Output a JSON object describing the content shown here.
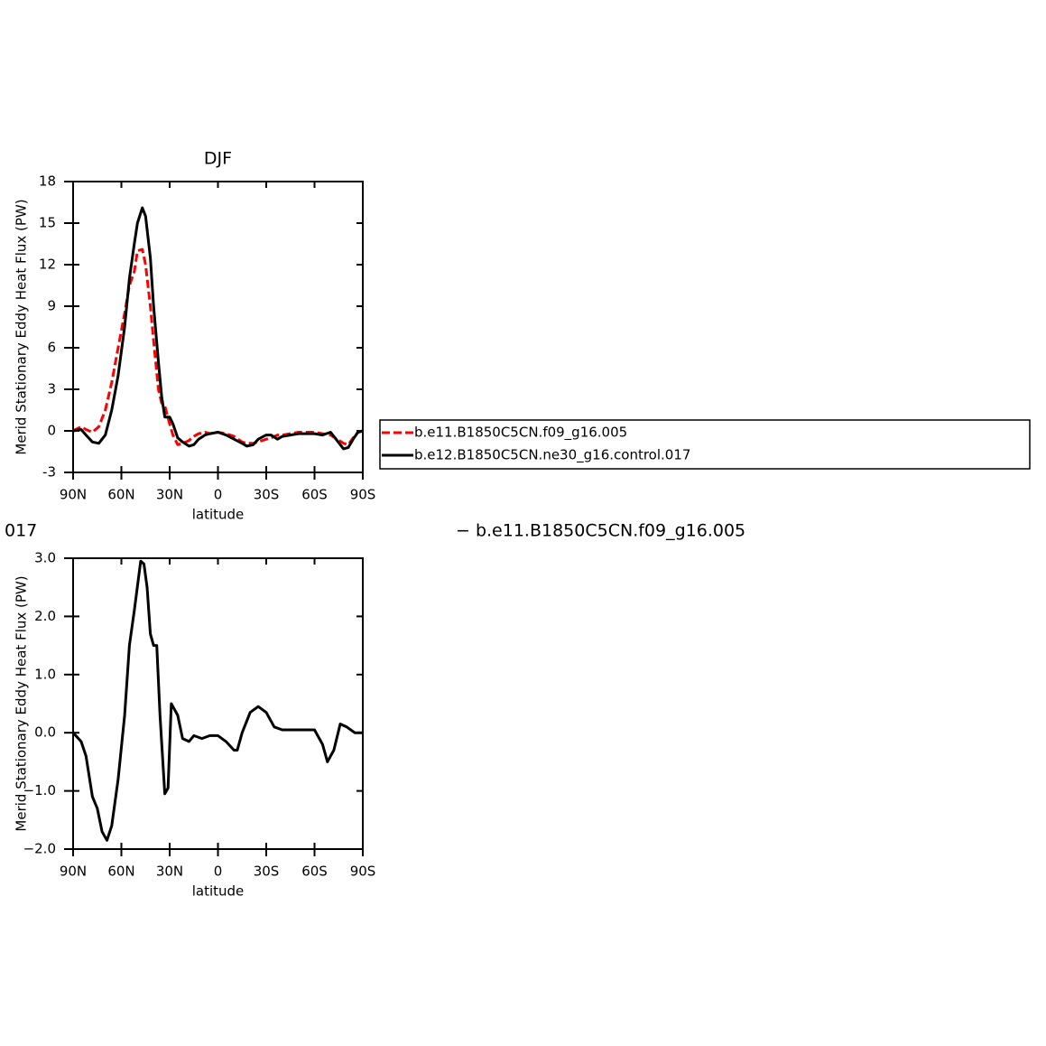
{
  "chart_data": [
    {
      "type": "line",
      "title": "DJF",
      "ylabel": "Merid Stationary Eddy Heat Flux (PW)",
      "xlabel": "latitude",
      "x": [
        90,
        85,
        82,
        78,
        74,
        70,
        66,
        62,
        58,
        55,
        52,
        50,
        47,
        45,
        42,
        40,
        37,
        35,
        33,
        30,
        28,
        25,
        22,
        18,
        15,
        12,
        8,
        5,
        0,
        -5,
        -10,
        -15,
        -18,
        -22,
        -25,
        -30,
        -33,
        -37,
        -40,
        -45,
        -50,
        -55,
        -60,
        -65,
        -70,
        -74,
        -78,
        -81,
        -84,
        -87,
        -90
      ],
      "xlim": [
        90,
        -90
      ],
      "xticks": [
        {
          "value": 90,
          "label": "90N"
        },
        {
          "value": 60,
          "label": "60N"
        },
        {
          "value": 30,
          "label": "30N"
        },
        0,
        {
          "value": -30,
          "label": "30S"
        },
        {
          "value": -60,
          "label": "60S"
        },
        {
          "value": -90,
          "label": "90S"
        }
      ],
      "ylim": [
        -3,
        18
      ],
      "yticks": [
        -3,
        0,
        3,
        6,
        9,
        12,
        15,
        18
      ],
      "series": [
        {
          "name": "b.e11.B1850C5CN.f09_g16.005",
          "color": "#ff0000",
          "linestyle": "dashed",
          "values": [
            0,
            0.3,
            0.1,
            -0.1,
            0.3,
            1.5,
            3.5,
            6,
            8.5,
            10.5,
            11.5,
            13,
            13.1,
            12,
            9,
            6.5,
            3,
            2,
            1.8,
            0.5,
            -0.3,
            -1,
            -0.9,
            -0.7,
            -0.4,
            -0.2,
            -0.1,
            -0.2,
            -0.1,
            -0.2,
            -0.4,
            -0.8,
            -0.9,
            -0.9,
            -0.8,
            -0.6,
            -0.5,
            -0.3,
            -0.3,
            -0.2,
            -0.1,
            -0.1,
            -0.1,
            -0.2,
            -0.3,
            -0.6,
            -0.9,
            -1,
            -0.5,
            -0.1,
            0
          ]
        },
        {
          "name": "b.e12.B1850C5CN.ne30_g16.control.017",
          "color": "#000000",
          "linestyle": "solid",
          "values": [
            0,
            0.1,
            -0.3,
            -0.8,
            -0.9,
            -0.3,
            1.5,
            4,
            7.5,
            11,
            13.5,
            15,
            16.1,
            15.5,
            12.5,
            9,
            5,
            2.5,
            1,
            1,
            0.5,
            -0.5,
            -0.8,
            -1.1,
            -1,
            -0.6,
            -0.3,
            -0.2,
            -0.1,
            -0.3,
            -0.6,
            -0.9,
            -1.1,
            -1,
            -0.6,
            -0.3,
            -0.3,
            -0.6,
            -0.4,
            -0.3,
            -0.2,
            -0.2,
            -0.2,
            -0.3,
            -0.1,
            -0.7,
            -1.3,
            -1.2,
            -0.6,
            -0.1,
            0
          ]
        }
      ]
    },
    {
      "type": "line",
      "title": [
        "017",
        "− b.e11.B1850C5CN.f09_g16.005"
      ],
      "ylabel": "Merid Stationary Eddy Heat Flux (PW)",
      "xlabel": "latitude",
      "x": [
        90,
        85,
        82,
        78,
        75,
        72,
        69,
        66,
        62,
        58,
        55,
        52,
        48,
        46,
        44,
        42,
        40,
        38,
        36,
        33,
        31,
        29,
        27,
        25,
        22,
        18,
        15,
        10,
        5,
        0,
        -5,
        -10,
        -12,
        -15,
        -20,
        -25,
        -30,
        -35,
        -40,
        -45,
        -50,
        -55,
        -60,
        -65,
        -68,
        -72,
        -76,
        -80,
        -85,
        -90
      ],
      "xlim": [
        90,
        -90
      ],
      "xticks": [
        {
          "value": 90,
          "label": "90N"
        },
        {
          "value": 60,
          "label": "60N"
        },
        {
          "value": 30,
          "label": "30N"
        },
        0,
        {
          "value": -30,
          "label": "30S"
        },
        {
          "value": -60,
          "label": "60S"
        },
        {
          "value": -90,
          "label": "90S"
        }
      ],
      "ylim": [
        -2,
        3
      ],
      "yticks": [
        {
          "value": -2,
          "label": "−2.0"
        },
        {
          "value": -1,
          "label": "−1.0"
        },
        {
          "value": 0,
          "label": "0.0"
        },
        {
          "value": 1,
          "label": "1.0"
        },
        {
          "value": 2,
          "label": "2.0"
        },
        {
          "value": 3,
          "label": "3.0"
        }
      ],
      "series": [
        {
          "color": "#000000",
          "linestyle": "solid",
          "values": [
            0,
            -0.15,
            -0.4,
            -1.1,
            -1.3,
            -1.7,
            -1.85,
            -1.6,
            -0.8,
            0.3,
            1.5,
            2.1,
            2.95,
            2.9,
            2.5,
            1.7,
            1.5,
            1.5,
            0.3,
            -1.05,
            -0.95,
            0.5,
            0.4,
            0.3,
            -0.1,
            -0.15,
            -0.05,
            -0.1,
            -0.05,
            -0.05,
            -0.15,
            -0.3,
            -0.3,
            0,
            0.35,
            0.45,
            0.35,
            0.1,
            0.05,
            0.05,
            0.05,
            0.05,
            0.05,
            -0.2,
            -0.5,
            -0.3,
            0.15,
            0.1,
            0,
            0
          ]
        }
      ]
    }
  ]
}
